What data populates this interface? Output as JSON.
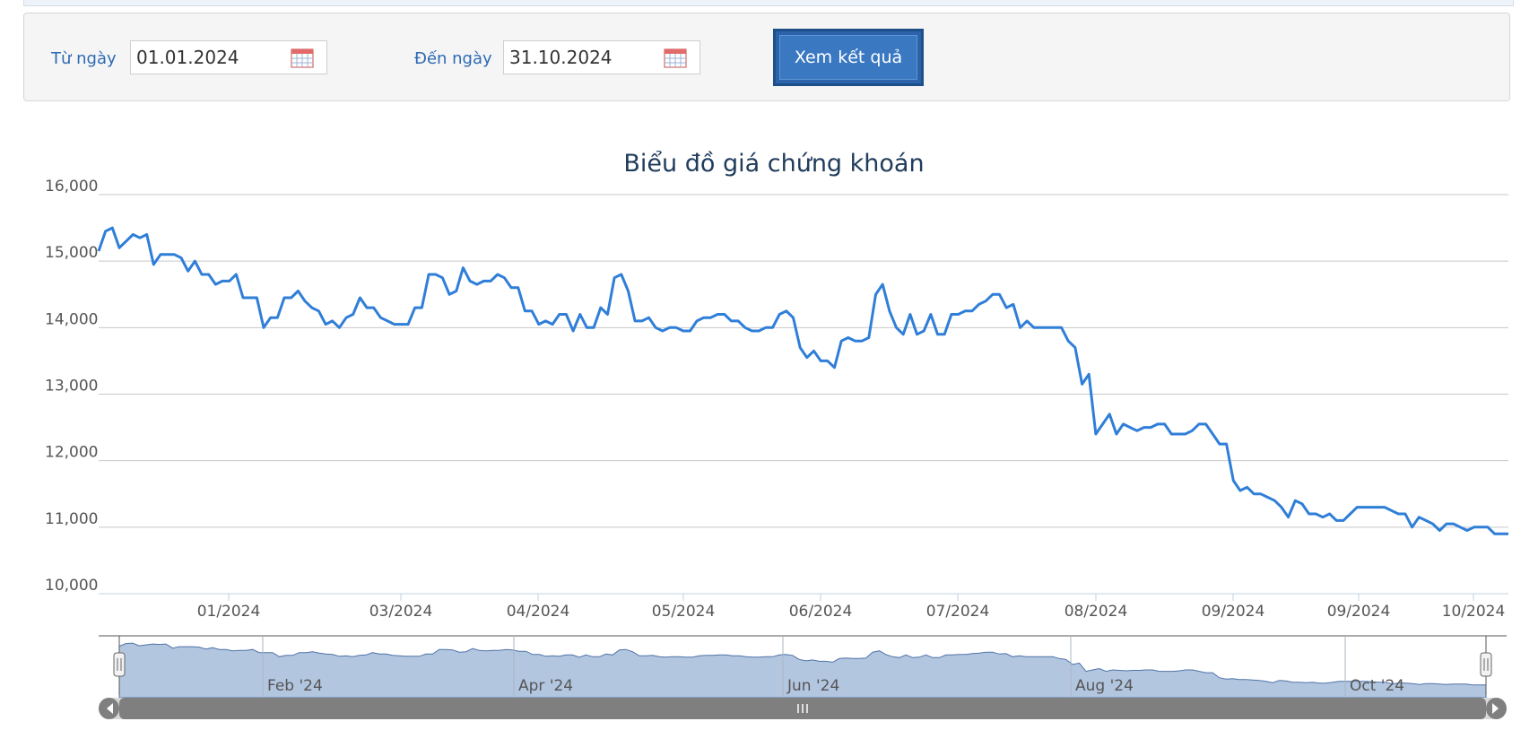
{
  "filter": {
    "from_label": "Từ ngày",
    "from_value": "01.01.2024",
    "to_label": "Đến ngày",
    "to_value": "31.10.2024",
    "submit_label": "Xem kết quả",
    "icon": "calendar-icon"
  },
  "chart_data": {
    "type": "line",
    "title": "Biểu đồ giá chứng khoán",
    "xlabel": "",
    "ylabel": "",
    "ylim": [
      10000,
      16000
    ],
    "yticks": [
      "10,000",
      "11,000",
      "12,000",
      "13,000",
      "14,000",
      "15,000",
      "16,000"
    ],
    "xticks": [
      "01/2024",
      "03/2024",
      "04/2024",
      "05/2024",
      "06/2024",
      "07/2024",
      "08/2024",
      "09/2024",
      "09/2024",
      "10/2024"
    ],
    "navigator_ticks": [
      "Feb '24",
      "Apr '24",
      "Jun '24",
      "Aug '24",
      "Oct '24"
    ],
    "grid": true,
    "line_color": "#2f7ed8",
    "navigator_fill": "#b3c6e0",
    "series": [
      {
        "values": [
          15150,
          15450,
          15500,
          15200,
          15300,
          15400,
          15350,
          15400,
          14950,
          15100,
          15100,
          15100,
          15050,
          14850,
          15000,
          14800,
          14800,
          14650,
          14700,
          14700,
          14800,
          14450,
          14450,
          14450,
          14000,
          14150,
          14150,
          14450,
          14450,
          14550,
          14400,
          14300,
          14250,
          14050,
          14100,
          14000,
          14150,
          14200,
          14450,
          14300,
          14300,
          14150,
          14100,
          14050,
          14050,
          14050,
          14300,
          14300,
          14800,
          14800,
          14750,
          14500,
          14550,
          14900,
          14700,
          14650,
          14700,
          14700,
          14800,
          14750,
          14600,
          14600,
          14250,
          14250,
          14050,
          14100,
          14050,
          14200,
          14200,
          13950,
          14200,
          14000,
          14000,
          14300,
          14200,
          14750,
          14800,
          14550,
          14100,
          14100,
          14150,
          14000,
          13950,
          14000,
          14000,
          13950,
          13950,
          14100,
          14150,
          14150,
          14200,
          14200,
          14100,
          14100,
          14000,
          13950,
          13950,
          14000,
          14000,
          14200,
          14250,
          14150,
          13700,
          13550,
          13650,
          13500,
          13500,
          13400,
          13800,
          13850,
          13800,
          13800,
          13850,
          14500,
          14650,
          14250,
          14000,
          13900,
          14200,
          13900,
          13950,
          14200,
          13900,
          13900,
          14200,
          14200,
          14250,
          14250,
          14350,
          14400,
          14500,
          14500,
          14300,
          14350,
          14000,
          14100,
          14000,
          14000,
          14000,
          14000,
          14000,
          13800,
          13700,
          13150,
          13300,
          12400,
          12550,
          12700,
          12400,
          12550,
          12500,
          12450,
          12500,
          12500,
          12550,
          12550,
          12400,
          12400,
          12400,
          12450,
          12550,
          12550,
          12400,
          12250,
          12250,
          11700,
          11550,
          11600,
          11500,
          11500,
          11450,
          11400,
          11300,
          11150,
          11400,
          11350,
          11200,
          11200,
          11150,
          11200,
          11100,
          11100,
          11200,
          11300,
          11300,
          11300,
          11300,
          11300,
          11250,
          11200,
          11200,
          11000,
          11150,
          11100,
          11050,
          10950,
          11050,
          11050,
          11000,
          10950,
          11000,
          11000,
          11000,
          10900,
          10900,
          10900
        ]
      }
    ]
  }
}
